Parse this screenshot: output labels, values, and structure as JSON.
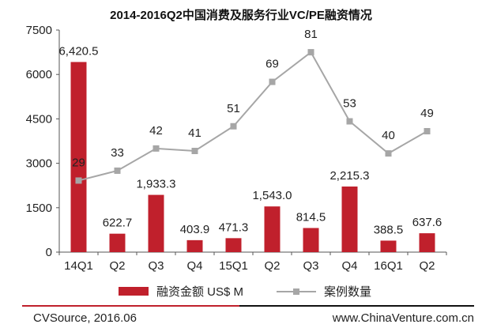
{
  "chart_data": {
    "type": "bar",
    "title": "2014-2016Q2中国消费及服务行业VC/PE融资情况",
    "categories": [
      "14Q1",
      "Q2",
      "Q3",
      "Q4",
      "15Q1",
      "Q2",
      "Q3",
      "Q4",
      "16Q1",
      "Q2"
    ],
    "ylim": [
      0,
      7500
    ],
    "yticks": [
      "0",
      "1500",
      "3000",
      "4500",
      "6000",
      "7500"
    ],
    "grid": false,
    "legend_position": "bottom",
    "series": [
      {
        "name": "融资金额 US$ M",
        "type": "bar",
        "color": "#c0202c",
        "values": [
          6420.5,
          622.7,
          1933.3,
          403.9,
          471.3,
          1543.0,
          814.5,
          2215.3,
          388.5,
          637.6
        ],
        "labels": [
          "6,420.5",
          "622.7",
          "1,933.3",
          "403.9",
          "471.3",
          "1,543.0",
          "814.5",
          "2,215.3",
          "388.5",
          "637.6"
        ]
      },
      {
        "name": "案例数量",
        "type": "line",
        "color": "#a6a6a6",
        "values": [
          29,
          33,
          42,
          41,
          51,
          69,
          81,
          53,
          40,
          49
        ],
        "labels": [
          "29",
          "33",
          "42",
          "41",
          "51",
          "69",
          "81",
          "53",
          "40",
          "49"
        ]
      }
    ]
  },
  "footer": {
    "source": "CVSource, 2016.06",
    "website": "www.ChinaVenture.com.cn"
  }
}
